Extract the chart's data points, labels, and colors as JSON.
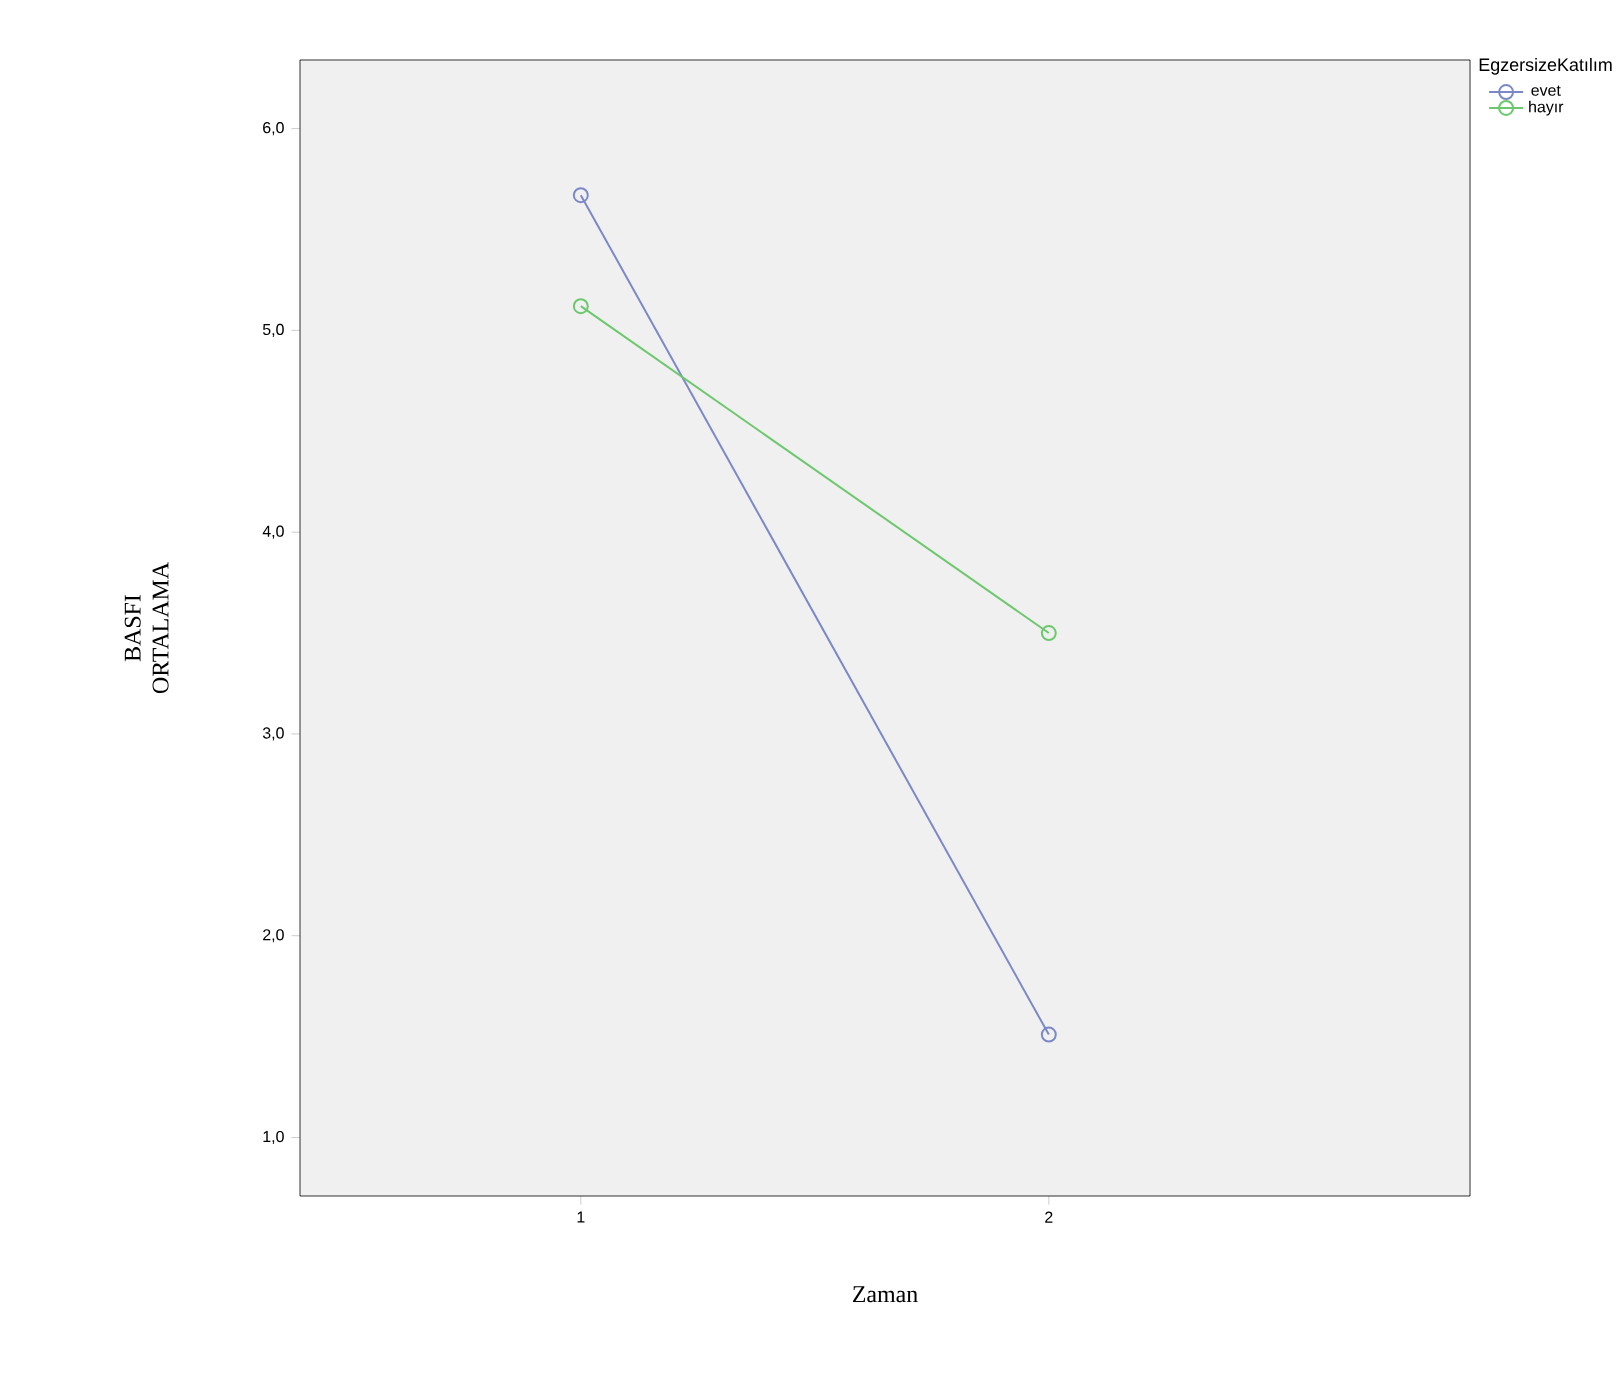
{
  "chart_data": {
    "type": "line",
    "xlabel": "Zaman",
    "ylabel": "BASFI ORTALAMA",
    "legend_title": "EgzersizeKatılım",
    "categories": [
      "1",
      "2"
    ],
    "series": [
      {
        "name": "evet",
        "color": "#7b88c8",
        "values": [
          5.67,
          1.51
        ]
      },
      {
        "name": "hayır",
        "color": "#6cc86c",
        "values": [
          5.12,
          3.5
        ]
      }
    ],
    "ylim": [
      0.71,
      6.34
    ],
    "yticks": [
      {
        "value": 1,
        "label": "1,0"
      },
      {
        "value": 2,
        "label": "2,0"
      },
      {
        "value": 3,
        "label": "3,0"
      },
      {
        "value": 4,
        "label": "4,0"
      },
      {
        "value": 5,
        "label": "5,0"
      },
      {
        "value": 6,
        "label": "6,0"
      }
    ],
    "marker": "circle",
    "legend": "top right"
  }
}
